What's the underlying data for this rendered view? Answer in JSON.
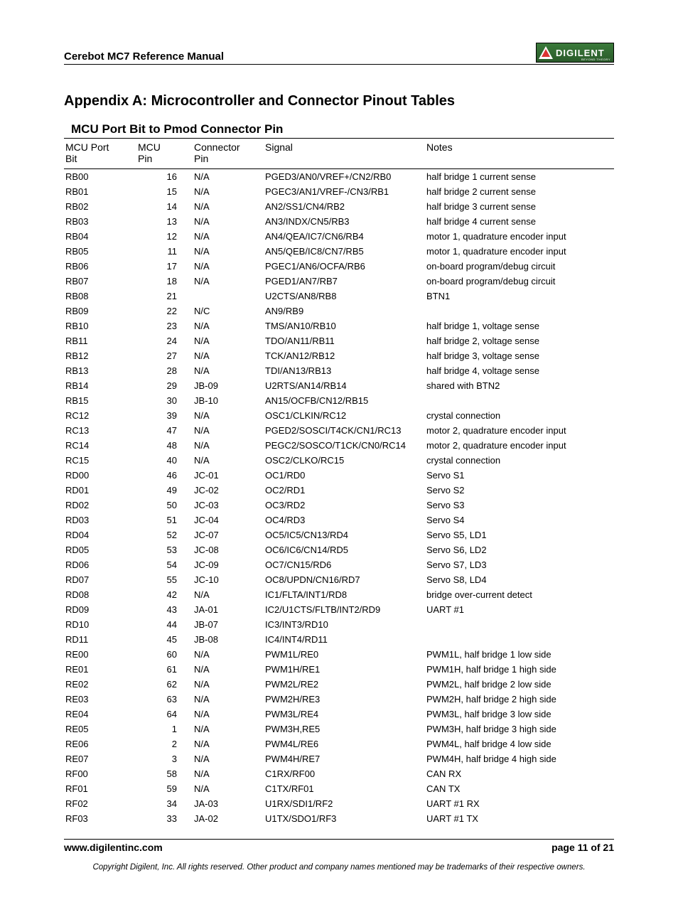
{
  "header": {
    "title": "Cerebot MC7 Reference Manual",
    "logo_text": "DIGILENT",
    "logo_sub": "BEYOND THEORY"
  },
  "appendix_title": "Appendix A: Microcontroller and Connector Pinout Tables",
  "table_title": "MCU Port Bit to Pmod Connector Pin",
  "columns": {
    "c1a": "MCU Port",
    "c1b": "Bit",
    "c2a": "MCU",
    "c2b": "Pin",
    "c3a": "Connector",
    "c3b": "Pin",
    "c4": "Signal",
    "c5": "Notes"
  },
  "rows": [
    [
      "RB00",
      "16",
      "N/A",
      "PGED3/AN0/VREF+/CN2/RB0",
      "half bridge 1 current sense"
    ],
    [
      "RB01",
      "15",
      "N/A",
      "PGEC3/AN1/VREF-/CN3/RB1",
      "half bridge 2 current sense"
    ],
    [
      "RB02",
      "14",
      "N/A",
      "AN2/SS1/CN4/RB2",
      "half bridge 3 current sense"
    ],
    [
      "RB03",
      "13",
      "N/A",
      "AN3/INDX/CN5/RB3",
      "half bridge 4 current sense"
    ],
    [
      "RB04",
      "12",
      "N/A",
      "AN4/QEA/IC7/CN6/RB4",
      "motor 1, quadrature encoder input"
    ],
    [
      "RB05",
      "11",
      "N/A",
      "AN5/QEB/IC8/CN7/RB5",
      "motor 1, quadrature encoder input"
    ],
    [
      "RB06",
      "17",
      "N/A",
      "PGEC1/AN6/OCFA/RB6",
      "on-board program/debug circuit"
    ],
    [
      "RB07",
      "18",
      "N/A",
      "PGED1/AN7/RB7",
      "on-board program/debug circuit"
    ],
    [
      "RB08",
      "21",
      "",
      "U2CTS/AN8/RB8",
      "BTN1"
    ],
    [
      "RB09",
      "22",
      "N/C",
      "AN9/RB9",
      ""
    ],
    [
      "RB10",
      "23",
      "N/A",
      "TMS/AN10/RB10",
      "half bridge 1, voltage sense"
    ],
    [
      "RB11",
      "24",
      "N/A",
      "TDO/AN11/RB11",
      "half bridge 2, voltage sense"
    ],
    [
      "RB12",
      "27",
      "N/A",
      "TCK/AN12/RB12",
      "half bridge 3, voltage sense"
    ],
    [
      "RB13",
      "28",
      "N/A",
      "TDI/AN13/RB13",
      "half bridge 4, voltage sense"
    ],
    [
      "RB14",
      "29",
      "JB-09",
      "U2RTS/AN14/RB14",
      "shared with BTN2"
    ],
    [
      "RB15",
      "30",
      "JB-10",
      "AN15/OCFB/CN12/RB15",
      ""
    ],
    [
      "RC12",
      "39",
      "N/A",
      "OSC1/CLKIN/RC12",
      "crystal connection"
    ],
    [
      "RC13",
      "47",
      "N/A",
      "PGED2/SOSCI/T4CK/CN1/RC13",
      "motor 2, quadrature encoder input"
    ],
    [
      "RC14",
      "48",
      "N/A",
      "PEGC2/SOSCO/T1CK/CN0/RC14",
      "motor 2, quadrature encoder input"
    ],
    [
      "RC15",
      "40",
      "N/A",
      "OSC2/CLKO/RC15",
      "crystal connection"
    ],
    [
      "RD00",
      "46",
      "JC-01",
      "OC1/RD0",
      "Servo S1"
    ],
    [
      "RD01",
      "49",
      "JC-02",
      "OC2/RD1",
      "Servo S2"
    ],
    [
      "RD02",
      "50",
      "JC-03",
      "OC3/RD2",
      "Servo S3"
    ],
    [
      "RD03",
      "51",
      "JC-04",
      "OC4/RD3",
      "Servo S4"
    ],
    [
      "RD04",
      "52",
      "JC-07",
      "OC5/IC5/CN13/RD4",
      "Servo S5, LD1"
    ],
    [
      "RD05",
      "53",
      "JC-08",
      "OC6/IC6/CN14/RD5",
      "Servo S6, LD2"
    ],
    [
      "RD06",
      "54",
      "JC-09",
      "OC7/CN15/RD6",
      "Servo S7, LD3"
    ],
    [
      "RD07",
      "55",
      "JC-10",
      "OC8/UPDN/CN16/RD7",
      "Servo S8, LD4"
    ],
    [
      "RD08",
      "42",
      "N/A",
      "IC1/FLTA/INT1/RD8",
      "bridge over-current detect"
    ],
    [
      "RD09",
      "43",
      "JA-01",
      "IC2/U1CTS/FLTB/INT2/RD9",
      "UART #1"
    ],
    [
      "RD10",
      "44",
      "JB-07",
      "IC3/INT3/RD10",
      ""
    ],
    [
      "RD11",
      "45",
      "JB-08",
      "IC4/INT4/RD11",
      ""
    ],
    [
      "RE00",
      "60",
      "N/A",
      "PWM1L/RE0",
      "PWM1L, half bridge 1 low side"
    ],
    [
      "RE01",
      "61",
      "N/A",
      "PWM1H/RE1",
      "PWM1H, half bridge 1 high side"
    ],
    [
      "RE02",
      "62",
      "N/A",
      "PWM2L/RE2",
      "PWM2L, half bridge 2 low side"
    ],
    [
      "RE03",
      "63",
      "N/A",
      "PWM2H/RE3",
      "PWM2H, half bridge 2 high side"
    ],
    [
      "RE04",
      "64",
      "N/A",
      "PWM3L/RE4",
      "PWM3L, half bridge 3 low side"
    ],
    [
      "RE05",
      "1",
      "N/A",
      "PWM3H,RE5",
      "PWM3H, half bridge 3 high side"
    ],
    [
      "RE06",
      "2",
      "N/A",
      "PWM4L/RE6",
      "PWM4L, half bridge 4 low side"
    ],
    [
      "RE07",
      "3",
      "N/A",
      "PWM4H/RE7",
      "PWM4H, half bridge 4 high side"
    ],
    [
      "RF00",
      "58",
      "N/A",
      "C1RX/RF00",
      "CAN RX"
    ],
    [
      "RF01",
      "59",
      "N/A",
      "C1TX/RF01",
      "CAN TX"
    ],
    [
      "RF02",
      "34",
      "JA-03",
      "U1RX/SDI1/RF2",
      "UART #1 RX"
    ],
    [
      "RF03",
      "33",
      "JA-02",
      "U1TX/SDO1/RF3",
      "UART #1 TX"
    ]
  ],
  "footer": {
    "url": "www.digilentinc.com",
    "page": "page 11 of 21",
    "copyright": "Copyright Digilent, Inc. All rights reserved. Other product and company names mentioned may be trademarks of their respective owners."
  }
}
